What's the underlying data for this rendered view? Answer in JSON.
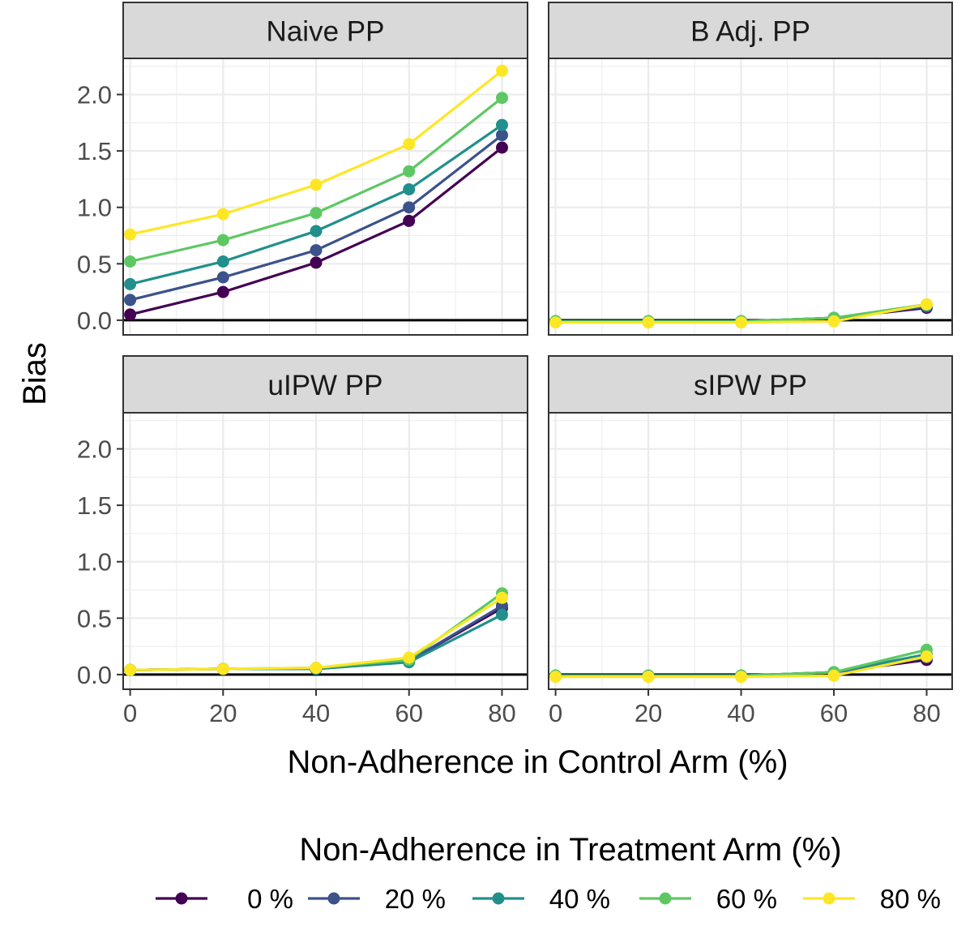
{
  "chart_data": {
    "type": "line",
    "layout": "facet-grid-2x2",
    "xlabel": "Non-Adherence in Control Arm (%)",
    "ylabel": "Bias",
    "x": [
      0,
      20,
      40,
      60,
      80
    ],
    "xticks": [
      "0",
      "20",
      "40",
      "60",
      "80"
    ],
    "xlim": [
      -1.5,
      85.5
    ],
    "ylim": [
      -0.13,
      2.32
    ],
    "yticks": [
      "0.0",
      "0.5",
      "1.0",
      "1.5",
      "2.0"
    ],
    "grid": true,
    "reference_line_y": 0,
    "legend": {
      "title": "Non-Adherence in Treatment Arm (%)",
      "position": "bottom",
      "entries": [
        "0 %",
        "20 %",
        "40 %",
        "60 %",
        "80 %"
      ]
    },
    "colors": [
      "#440154",
      "#3B528B",
      "#21908C",
      "#5DC863",
      "#FDE725"
    ],
    "panels": [
      {
        "title": "Naive PP",
        "series": [
          {
            "name": "0 %",
            "values": [
              0.05,
              0.25,
              0.51,
              0.88,
              1.53
            ]
          },
          {
            "name": "20 %",
            "values": [
              0.18,
              0.38,
              0.62,
              1.0,
              1.64
            ]
          },
          {
            "name": "40 %",
            "values": [
              0.32,
              0.52,
              0.79,
              1.16,
              1.73
            ]
          },
          {
            "name": "60 %",
            "values": [
              0.52,
              0.71,
              0.95,
              1.32,
              1.97
            ]
          },
          {
            "name": "80 %",
            "values": [
              0.76,
              0.94,
              1.2,
              1.56,
              2.21
            ]
          }
        ]
      },
      {
        "title": "B Adj. PP",
        "series": [
          {
            "name": "0 %",
            "values": [
              -0.01,
              -0.01,
              -0.01,
              0.02,
              0.11
            ]
          },
          {
            "name": "20 %",
            "values": [
              -0.01,
              -0.01,
              -0.01,
              0.02,
              0.12
            ]
          },
          {
            "name": "40 %",
            "values": [
              -0.01,
              -0.01,
              -0.01,
              0.02,
              0.13
            ]
          },
          {
            "name": "60 %",
            "values": [
              -0.01,
              -0.01,
              -0.01,
              0.02,
              0.14
            ]
          },
          {
            "name": "80 %",
            "values": [
              -0.02,
              -0.02,
              -0.02,
              -0.01,
              0.14
            ]
          }
        ]
      },
      {
        "title": "uIPW PP",
        "series": [
          {
            "name": "0 %",
            "values": [
              0.04,
              0.05,
              0.05,
              0.12,
              0.59
            ]
          },
          {
            "name": "20 %",
            "values": [
              0.04,
              0.05,
              0.05,
              0.12,
              0.61
            ]
          },
          {
            "name": "40 %",
            "values": [
              0.04,
              0.05,
              0.05,
              0.11,
              0.53
            ]
          },
          {
            "name": "60 %",
            "values": [
              0.04,
              0.05,
              0.06,
              0.13,
              0.72
            ]
          },
          {
            "name": "80 %",
            "values": [
              0.04,
              0.05,
              0.06,
              0.15,
              0.68
            ]
          }
        ]
      },
      {
        "title": "sIPW PP",
        "series": [
          {
            "name": "0 %",
            "values": [
              -0.01,
              -0.01,
              -0.01,
              0.02,
              0.13
            ]
          },
          {
            "name": "20 %",
            "values": [
              -0.01,
              -0.01,
              -0.01,
              0.02,
              0.15
            ]
          },
          {
            "name": "40 %",
            "values": [
              -0.01,
              -0.01,
              -0.01,
              0.02,
              0.18
            ]
          },
          {
            "name": "60 %",
            "values": [
              -0.01,
              -0.01,
              -0.01,
              0.02,
              0.22
            ]
          },
          {
            "name": "80 %",
            "values": [
              -0.02,
              -0.02,
              -0.02,
              -0.01,
              0.16
            ]
          }
        ]
      }
    ]
  }
}
